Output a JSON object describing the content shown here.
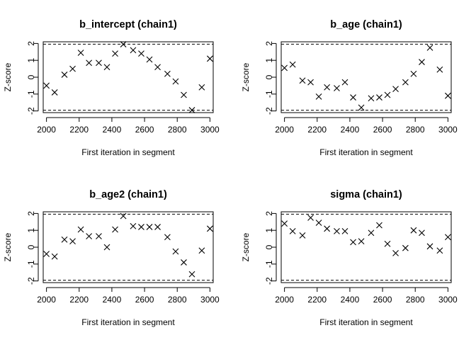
{
  "chart_data": [
    {
      "type": "scatter",
      "title": "b_intercept (chain1)",
      "xlabel": "First iteration in segment",
      "ylabel": "Z-score",
      "xlim": [
        1980,
        3020
      ],
      "ylim": [
        -2.1,
        2.1
      ],
      "xticks": [
        2000,
        2200,
        2400,
        2600,
        2800,
        3000
      ],
      "yticks": [
        -2,
        -1,
        0,
        1,
        2
      ],
      "reference_lines": [
        -1.96,
        1.96
      ],
      "marker": "x",
      "x": [
        2000,
        2050,
        2110,
        2160,
        2210,
        2260,
        2320,
        2370,
        2420,
        2470,
        2530,
        2580,
        2630,
        2680,
        2740,
        2790,
        2840,
        2890,
        2950,
        3000
      ],
      "y": [
        -0.5,
        -0.9,
        0.15,
        0.5,
        1.45,
        0.85,
        0.85,
        0.6,
        1.4,
        1.95,
        1.6,
        1.4,
        1.05,
        0.6,
        0.2,
        -0.25,
        -1.05,
        -1.95,
        -0.6,
        1.1
      ]
    },
    {
      "type": "scatter",
      "title": "b_age (chain1)",
      "xlabel": "First iteration in segment",
      "ylabel": "Z-score",
      "xlim": [
        1980,
        3020
      ],
      "ylim": [
        -2.1,
        2.1
      ],
      "xticks": [
        2000,
        2200,
        2400,
        2600,
        2800,
        3000
      ],
      "yticks": [
        -2,
        -1,
        0,
        1,
        2
      ],
      "reference_lines": [
        -1.96,
        1.96
      ],
      "marker": "x",
      "x": [
        2000,
        2050,
        2110,
        2160,
        2210,
        2260,
        2320,
        2370,
        2420,
        2470,
        2530,
        2580,
        2630,
        2680,
        2740,
        2790,
        2840,
        2890,
        2950,
        3000
      ],
      "y": [
        0.55,
        0.75,
        -0.2,
        -0.3,
        -1.15,
        -0.6,
        -0.65,
        -0.3,
        -1.2,
        -1.8,
        -1.25,
        -1.2,
        -1.05,
        -0.7,
        -0.3,
        0.2,
        0.9,
        1.75,
        0.45,
        -1.1
      ]
    },
    {
      "type": "scatter",
      "title": "b_age2 (chain1)",
      "xlabel": "First iteration in segment",
      "ylabel": "Z-score",
      "xlim": [
        1980,
        3020
      ],
      "ylim": [
        -2.1,
        2.1
      ],
      "xticks": [
        2000,
        2200,
        2400,
        2600,
        2800,
        3000
      ],
      "yticks": [
        -2,
        -1,
        0,
        1,
        2
      ],
      "reference_lines": [
        -1.96,
        1.96
      ],
      "marker": "x",
      "x": [
        2000,
        2050,
        2110,
        2160,
        2210,
        2260,
        2320,
        2370,
        2420,
        2470,
        2530,
        2580,
        2630,
        2680,
        2740,
        2790,
        2840,
        2890,
        2950,
        3000
      ],
      "y": [
        -0.4,
        -0.55,
        0.45,
        0.35,
        1.05,
        0.65,
        0.65,
        0.0,
        1.05,
        1.85,
        1.25,
        1.2,
        1.2,
        1.2,
        0.6,
        -0.25,
        -0.9,
        -1.6,
        -0.2,
        1.1
      ]
    },
    {
      "type": "scatter",
      "title": "sigma (chain1)",
      "xlabel": "First iteration in segment",
      "ylabel": "Z-score",
      "xlim": [
        1980,
        3020
      ],
      "ylim": [
        -2.1,
        2.1
      ],
      "xticks": [
        2000,
        2200,
        2400,
        2600,
        2800,
        3000
      ],
      "yticks": [
        -2,
        -1,
        0,
        1,
        2
      ],
      "reference_lines": [
        -1.96,
        1.96
      ],
      "marker": "x",
      "x": [
        2000,
        2050,
        2110,
        2160,
        2210,
        2260,
        2320,
        2370,
        2420,
        2470,
        2530,
        2580,
        2630,
        2680,
        2740,
        2790,
        2840,
        2890,
        2950,
        3000
      ],
      "y": [
        1.4,
        0.95,
        0.7,
        1.75,
        1.45,
        1.1,
        0.95,
        0.95,
        0.3,
        0.35,
        0.85,
        1.3,
        0.2,
        -0.35,
        -0.05,
        1.0,
        0.85,
        0.05,
        -0.2,
        0.6
      ]
    }
  ]
}
